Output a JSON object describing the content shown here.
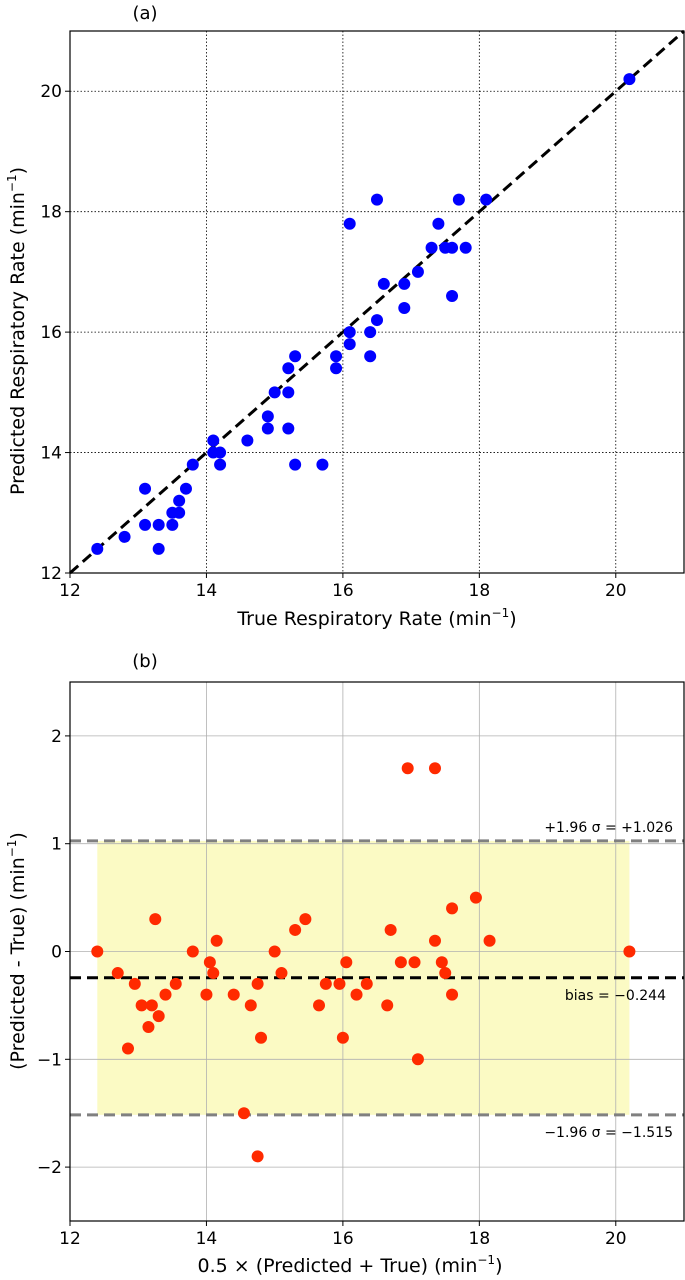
{
  "chart_data": [
    {
      "type": "scatter",
      "panel_label": "(a)",
      "xlabel": "True Respiratory Rate (min",
      "xlabel_sup": "−1",
      "xlabel_end": ")",
      "ylabel": "Predicted Respiratory Rate (min",
      "ylabel_sup": "−1",
      "ylabel_end": ")",
      "xlim": [
        12,
        21
      ],
      "ylim": [
        12,
        21
      ],
      "xticks": [
        12,
        14,
        16,
        18,
        20
      ],
      "yticks": [
        12,
        14,
        16,
        18,
        20
      ],
      "grid": true,
      "point_color": "#0000ff",
      "identity_line": {
        "style": "dashed",
        "color": "#000000"
      },
      "points": [
        [
          12.4,
          12.4
        ],
        [
          12.8,
          12.6
        ],
        [
          13.1,
          12.8
        ],
        [
          13.1,
          13.4
        ],
        [
          13.3,
          12.8
        ],
        [
          13.3,
          12.4
        ],
        [
          13.5,
          12.8
        ],
        [
          13.5,
          13.0
        ],
        [
          13.6,
          13.0
        ],
        [
          13.6,
          13.2
        ],
        [
          13.7,
          13.4
        ],
        [
          13.8,
          13.8
        ],
        [
          14.1,
          14.0
        ],
        [
          14.1,
          14.2
        ],
        [
          14.2,
          14.0
        ],
        [
          14.2,
          13.8
        ],
        [
          14.6,
          14.2
        ],
        [
          14.9,
          14.4
        ],
        [
          14.9,
          14.6
        ],
        [
          15.0,
          15.0
        ],
        [
          15.2,
          15.0
        ],
        [
          15.2,
          14.4
        ],
        [
          15.2,
          15.4
        ],
        [
          15.3,
          15.6
        ],
        [
          15.3,
          13.8
        ],
        [
          15.7,
          13.8
        ],
        [
          15.9,
          15.4
        ],
        [
          15.9,
          15.6
        ],
        [
          16.1,
          15.8
        ],
        [
          16.1,
          16.0
        ],
        [
          16.1,
          17.8
        ],
        [
          16.4,
          15.6
        ],
        [
          16.4,
          16.0
        ],
        [
          16.5,
          16.2
        ],
        [
          16.5,
          18.2
        ],
        [
          16.6,
          16.8
        ],
        [
          16.9,
          16.8
        ],
        [
          16.9,
          16.4
        ],
        [
          17.1,
          17.0
        ],
        [
          17.3,
          17.4
        ],
        [
          17.4,
          17.8
        ],
        [
          17.5,
          17.4
        ],
        [
          17.6,
          17.4
        ],
        [
          17.6,
          16.6
        ],
        [
          17.7,
          18.2
        ],
        [
          17.8,
          17.4
        ],
        [
          18.1,
          18.2
        ],
        [
          20.2,
          20.2
        ]
      ]
    },
    {
      "type": "scatter",
      "panel_label": "(b)",
      "xlabel": "0.5 ×  (Predicted + True) (min",
      "xlabel_sup": "−1",
      "xlabel_end": ")",
      "ylabel": "(Predicted - True) (min",
      "ylabel_sup": "−1",
      "ylabel_end": ")",
      "xlim": [
        12,
        21
      ],
      "ylim": [
        -2.5,
        2.5
      ],
      "xticks": [
        12,
        14,
        16,
        18,
        20
      ],
      "yticks": [
        -2,
        -1,
        0,
        1,
        2
      ],
      "ytick_labels": [
        "−2",
        "−1",
        "0",
        "1",
        "2"
      ],
      "grid": true,
      "point_color": "#ff2a00",
      "bias": -0.244,
      "upper_loa": 1.026,
      "lower_loa": -1.515,
      "loa_band_x": [
        12.4,
        20.2
      ],
      "band_color": "#fbfac4",
      "bias_label": "bias = −0.244",
      "upper_label": "+1.96 σ = +1.026",
      "lower_label": "−1.96 σ = −1.515",
      "points": [
        [
          12.4,
          0.0
        ],
        [
          12.7,
          -0.2
        ],
        [
          12.85,
          -0.9
        ],
        [
          12.95,
          -0.3
        ],
        [
          13.05,
          -0.5
        ],
        [
          13.15,
          -0.7
        ],
        [
          13.2,
          -0.5
        ],
        [
          13.25,
          0.3
        ],
        [
          13.3,
          -0.6
        ],
        [
          13.4,
          -0.4
        ],
        [
          13.55,
          -0.3
        ],
        [
          13.8,
          0.0
        ],
        [
          14.0,
          -0.4
        ],
        [
          14.05,
          -0.1
        ],
        [
          14.1,
          -0.2
        ],
        [
          14.15,
          0.1
        ],
        [
          14.4,
          -0.4
        ],
        [
          14.55,
          -1.5
        ],
        [
          14.65,
          -0.5
        ],
        [
          14.75,
          -1.9
        ],
        [
          14.75,
          -0.3
        ],
        [
          14.8,
          -0.8
        ],
        [
          15.0,
          0.0
        ],
        [
          15.1,
          -0.2
        ],
        [
          15.3,
          0.2
        ],
        [
          15.45,
          0.3
        ],
        [
          15.65,
          -0.5
        ],
        [
          15.75,
          -0.3
        ],
        [
          15.95,
          -0.3
        ],
        [
          16.0,
          -0.8
        ],
        [
          16.05,
          -0.1
        ],
        [
          16.2,
          -0.4
        ],
        [
          16.35,
          -0.3
        ],
        [
          16.65,
          -0.5
        ],
        [
          16.7,
          0.2
        ],
        [
          16.85,
          -0.1
        ],
        [
          16.95,
          1.7
        ],
        [
          17.05,
          -0.1
        ],
        [
          17.1,
          -1.0
        ],
        [
          17.35,
          1.7
        ],
        [
          17.35,
          0.1
        ],
        [
          17.45,
          -0.1
        ],
        [
          17.5,
          -0.2
        ],
        [
          17.6,
          0.4
        ],
        [
          17.6,
          -0.4
        ],
        [
          17.95,
          0.5
        ],
        [
          18.15,
          0.1
        ],
        [
          20.2,
          0.0
        ]
      ]
    }
  ]
}
